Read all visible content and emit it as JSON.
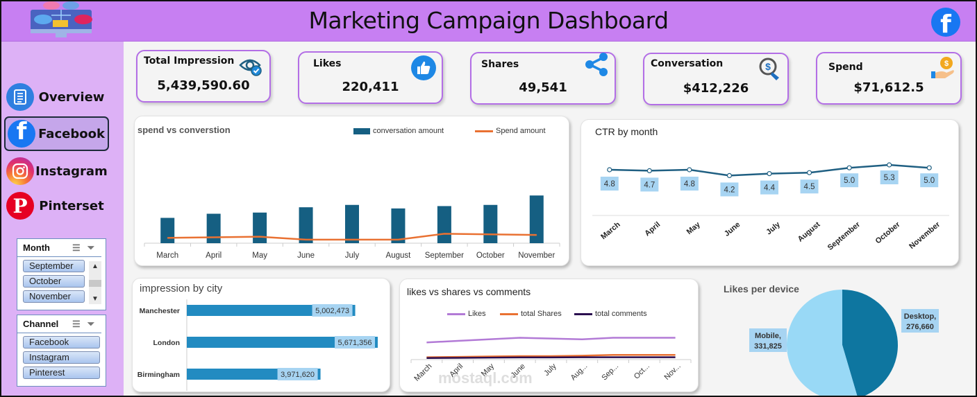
{
  "header": {
    "title": "Marketing Campaign Dashboard",
    "brand_icon": "facebook-icon"
  },
  "sidebar": {
    "items": [
      {
        "label": "Overview",
        "icon": "document-list-icon",
        "active": false
      },
      {
        "label": "Facebook",
        "icon": "facebook-icon",
        "active": true
      },
      {
        "label": "Instagram",
        "icon": "instagram-icon",
        "active": false
      },
      {
        "label": "Pinterset",
        "icon": "pinterest-icon",
        "active": false
      }
    ],
    "slicers": [
      {
        "title": "Month",
        "options": [
          "September",
          "October",
          "November"
        ]
      },
      {
        "title": "Channel",
        "options": [
          "Facebook",
          "Instagram",
          "Pinterest"
        ]
      }
    ]
  },
  "kpis": [
    {
      "label": "Total Impression",
      "value": "5,439,590.60",
      "icon": "eye-check-icon"
    },
    {
      "label": "Likes",
      "value": "220,411",
      "icon": "thumbs-up-icon"
    },
    {
      "label": "Shares",
      "value": "49,541",
      "icon": "share-icon"
    },
    {
      "label": "Conversation",
      "value": "$412,226",
      "icon": "dollar-click-icon"
    },
    {
      "label": "Spend",
      "value": "$71,612.5",
      "icon": "coin-hand-icon"
    }
  ],
  "colors": {
    "header": "#c77ff2",
    "sidebar": "#ddb1f6",
    "card_border": "#b36ee6",
    "bar": "#155f82",
    "spend_line": "#e97132",
    "ctr_line": "#1f5f82",
    "city_bar": "#228bc1",
    "likes_line": "#b27ad6",
    "comments_line": "#2a0d4f",
    "pie_desktop": "#0e76a0",
    "pie_mobile": "#99d9f6"
  },
  "watermark": {
    "text": "mostaql.com"
  },
  "chart_data": [
    {
      "id": "spend_vs_conversion",
      "type": "bar",
      "title": "spend vs converstion",
      "categories": [
        "March",
        "April",
        "May",
        "June",
        "July",
        "August",
        "September",
        "October",
        "November"
      ],
      "series": [
        {
          "name": "conversation amount",
          "type": "bar",
          "values": [
            43000,
            50000,
            52000,
            61000,
            65000,
            59000,
            63000,
            65000,
            81000
          ]
        },
        {
          "name": "Spend amount",
          "type": "line",
          "values": [
            9000,
            10000,
            11000,
            6000,
            6000,
            6000,
            16000,
            15000,
            14000
          ]
        }
      ],
      "ylim": [
        0,
        180000
      ],
      "legend": "top-right"
    },
    {
      "id": "ctr_by_month",
      "type": "line",
      "title": "CTR by month",
      "categories": [
        "March",
        "April",
        "May",
        "June",
        "July",
        "August",
        "September",
        "October",
        "November"
      ],
      "values": [
        4.8,
        4.7,
        4.8,
        4.2,
        4.4,
        4.5,
        5.0,
        5.3,
        5.0
      ],
      "data_labels": [
        "4.8",
        "4.7",
        "4.8",
        "4.2",
        "4.4",
        "4.5",
        "5.0",
        "5.3",
        "5.0"
      ],
      "ylim": [
        0,
        7
      ]
    },
    {
      "id": "impression_by_city",
      "type": "bar",
      "orientation": "horizontal",
      "title": "impression by city",
      "categories": [
        "Manchester",
        "London",
        "Birmingham"
      ],
      "values": [
        5002473,
        5671356,
        3971620
      ],
      "data_labels": [
        "5,002,473",
        "5,671,356",
        "3,971,620"
      ]
    },
    {
      "id": "likes_shares_comments",
      "type": "line",
      "title": "likes vs shares vs comments",
      "categories": [
        "March",
        "April",
        "May",
        "June",
        "July",
        "Aug...",
        "Sep...",
        "Oct...",
        "Nov..."
      ],
      "series": [
        {
          "name": "Likes",
          "values": [
            22000,
            24000,
            26000,
            28000,
            27000,
            26000,
            28000,
            28000,
            28000
          ]
        },
        {
          "name": "total Shares",
          "values": [
            3000,
            3500,
            4000,
            4500,
            4500,
            5000,
            6000,
            6000,
            6000
          ]
        },
        {
          "name": "total comments",
          "values": [
            2000,
            2200,
            2500,
            2800,
            2800,
            3000,
            3000,
            3000,
            3000
          ]
        }
      ],
      "ylim": [
        0,
        80000
      ],
      "legend": "top"
    },
    {
      "id": "likes_per_device",
      "type": "pie",
      "title": "Likes per device",
      "labels": [
        "Desktop",
        "Mobile"
      ],
      "values": [
        276660,
        331825
      ],
      "data_labels": [
        "Desktop, 276,660",
        "Mobile, 331,825"
      ]
    }
  ]
}
